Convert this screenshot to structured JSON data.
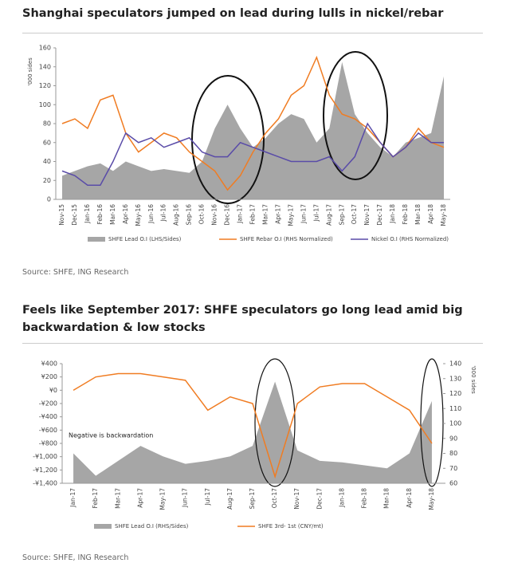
{
  "chart_data": [
    {
      "type": "area-line",
      "title": "Shanghai speculators jumped on lead during lulls in nickel/rebar",
      "ylabel": "'000 sides",
      "categories": [
        "Nov-15",
        "Dec-15",
        "Jan-16",
        "Feb-16",
        "Mar-16",
        "Apr-16",
        "May-16",
        "Jun-16",
        "Jul-16",
        "Aug-16",
        "Sep-16",
        "Oct-16",
        "Nov-16",
        "Dec-16",
        "Jan-17",
        "Feb-17",
        "Mar-17",
        "Apr-17",
        "May-17",
        "Jun-17",
        "Jul-17",
        "Aug-17",
        "Sep-17",
        "Oct-17",
        "Nov-17",
        "Dec-17",
        "Jan-18",
        "Feb-18",
        "Mar-18",
        "Apr-18",
        "May-18"
      ],
      "series": [
        {
          "name": "SHFE Lead O.I (LHS/Sides)",
          "kind": "area",
          "color": "#a6a6a6",
          "values": [
            25,
            30,
            35,
            38,
            30,
            40,
            35,
            30,
            32,
            30,
            28,
            40,
            75,
            100,
            75,
            55,
            65,
            80,
            90,
            85,
            60,
            75,
            145,
            90,
            70,
            55,
            45,
            60,
            65,
            70,
            130
          ]
        },
        {
          "name": "SHFE Rebar O.I (RHS Normalized)",
          "kind": "line",
          "color": "#f07c22",
          "values": [
            80,
            85,
            75,
            105,
            110,
            70,
            50,
            60,
            70,
            65,
            50,
            40,
            30,
            10,
            25,
            50,
            70,
            85,
            110,
            120,
            150,
            110,
            90,
            85,
            75,
            60,
            45,
            55,
            75,
            60,
            55
          ]
        },
        {
          "name": "Nickel O.I (RHS Normalized)",
          "kind": "line",
          "color": "#5a4ca8",
          "values": [
            30,
            25,
            15,
            15,
            40,
            70,
            60,
            65,
            55,
            60,
            65,
            50,
            45,
            45,
            60,
            55,
            50,
            45,
            40,
            40,
            40,
            45,
            30,
            45,
            80,
            60,
            45,
            55,
            70,
            60,
            60
          ]
        }
      ],
      "ylim": [
        0,
        160
      ],
      "yticks": [
        0,
        20,
        40,
        60,
        80,
        100,
        120,
        140,
        160
      ],
      "source": "Source: SHFE, ING Research"
    },
    {
      "type": "area-line",
      "title": "Feels like September 2017: SHFE speculators go long lead amid big backwardation & low stocks",
      "y2label": "'000 sides",
      "annotation": "Negative is backwardation",
      "categories": [
        "Jan-17",
        "Feb-17",
        "Mar-17",
        "Apr-17",
        "May-17",
        "Jun-17",
        "Jul-17",
        "Aug-17",
        "Sep-17",
        "Oct-17",
        "Nov-17",
        "Dec-17",
        "Jan-18",
        "Feb-18",
        "Mar-18",
        "Apr-18",
        "May-18"
      ],
      "series": [
        {
          "name": "SHFE Lead O.I (RHS/Sides)",
          "kind": "area",
          "axis": "y2",
          "color": "#a6a6a6",
          "values": [
            80,
            65,
            75,
            85,
            78,
            73,
            75,
            78,
            85,
            128,
            82,
            75,
            74,
            72,
            70,
            80,
            115
          ]
        },
        {
          "name": "SHFE 3rd- 1st (CNY/mt)",
          "kind": "line",
          "color": "#f07c22",
          "values": [
            0,
            200,
            250,
            250,
            200,
            150,
            -300,
            -100,
            -200,
            -1300,
            -200,
            50,
            100,
            100,
            -100,
            -300,
            -800
          ]
        }
      ],
      "ylim": [
        -1400,
        400
      ],
      "yticks": [
        {
          "value": 400,
          "label": "¥400"
        },
        {
          "value": 200,
          "label": "¥200"
        },
        {
          "value": 0,
          "label": "¥0"
        },
        {
          "value": -200,
          "label": "-¥200"
        },
        {
          "value": -400,
          "label": "-¥400"
        },
        {
          "value": -600,
          "label": "-¥600"
        },
        {
          "value": -800,
          "label": "-¥800"
        },
        {
          "value": -1000,
          "label": "-¥1,000"
        },
        {
          "value": -1200,
          "label": "-¥1,200"
        },
        {
          "value": -1400,
          "label": "-¥1,400"
        }
      ],
      "y2lim": [
        60,
        140
      ],
      "y2ticks": [
        60,
        70,
        80,
        90,
        100,
        110,
        120,
        130,
        140
      ],
      "source": "Source: SHFE, ING Research"
    }
  ]
}
